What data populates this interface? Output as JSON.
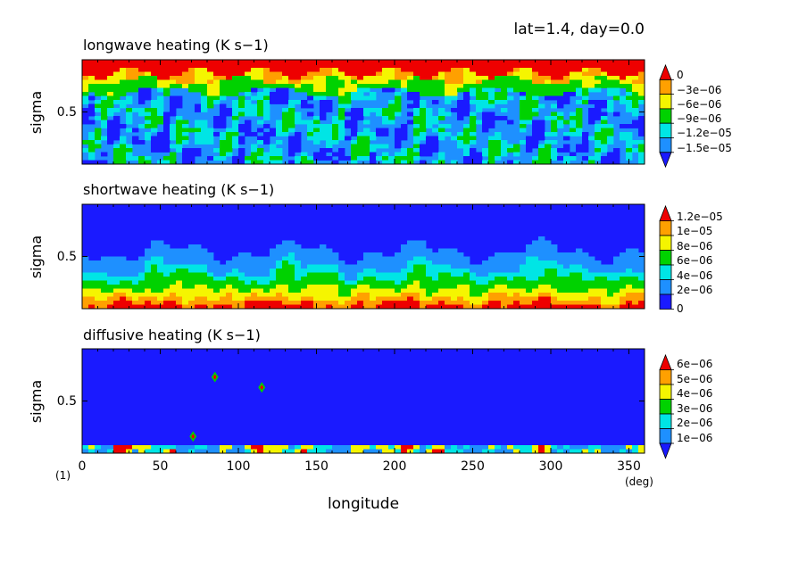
{
  "header": {
    "info": "lat=1.4, day=0.0",
    "figure_number": "(1)"
  },
  "chart_data": [
    {
      "type": "heatmap",
      "title": "longwave heating (K s−1)",
      "ylabel": "sigma",
      "xlabel": "",
      "xlim": [
        0,
        360
      ],
      "ylim": [
        0,
        1
      ],
      "ytick": "0.5",
      "colorbar_levels": [
        "0",
        "−3e−06",
        "−6e−06",
        "−9e−06",
        "−1.2e−05",
        "−1.5e−05"
      ],
      "colors": [
        "#1a1aff",
        "#1e90ff",
        "#00e5e5",
        "#00d200",
        "#f5f500",
        "#ffa000",
        "#ee0000"
      ],
      "extend": "both",
      "pattern": "longwave"
    },
    {
      "type": "heatmap",
      "title": "shortwave heating (K s−1)",
      "ylabel": "sigma",
      "xlabel": "",
      "xlim": [
        0,
        360
      ],
      "ylim": [
        0,
        1
      ],
      "ytick": "0.5",
      "colorbar_levels": [
        "1.2e−05",
        "1e−05",
        "8e−06",
        "6e−06",
        "4e−06",
        "2e−06",
        "0"
      ],
      "colors": [
        "#1a1aff",
        "#1e90ff",
        "#00e5e5",
        "#00d200",
        "#f5f500",
        "#ffa000",
        "#ee0000"
      ],
      "extend": "max",
      "pattern": "shortwave"
    },
    {
      "type": "heatmap",
      "title": "diffusive heating (K s−1)",
      "ylabel": "sigma",
      "xlabel": "longitude",
      "xunit": "(deg)",
      "xlim": [
        0,
        360
      ],
      "ylim": [
        0,
        1
      ],
      "ytick": "0.5",
      "xticks": [
        "0",
        "50",
        "100",
        "150",
        "200",
        "250",
        "300",
        "350"
      ],
      "xtick_values": [
        0,
        50,
        100,
        150,
        200,
        250,
        300,
        350
      ],
      "colorbar_levels": [
        "6e−06",
        "5e−06",
        "4e−06",
        "3e−06",
        "2e−06",
        "1e−06"
      ],
      "colors": [
        "#1a1aff",
        "#1e90ff",
        "#00e5e5",
        "#00d200",
        "#f5f500",
        "#ffa000",
        "#ee0000"
      ],
      "extend": "both",
      "pattern": "diffusive"
    }
  ]
}
